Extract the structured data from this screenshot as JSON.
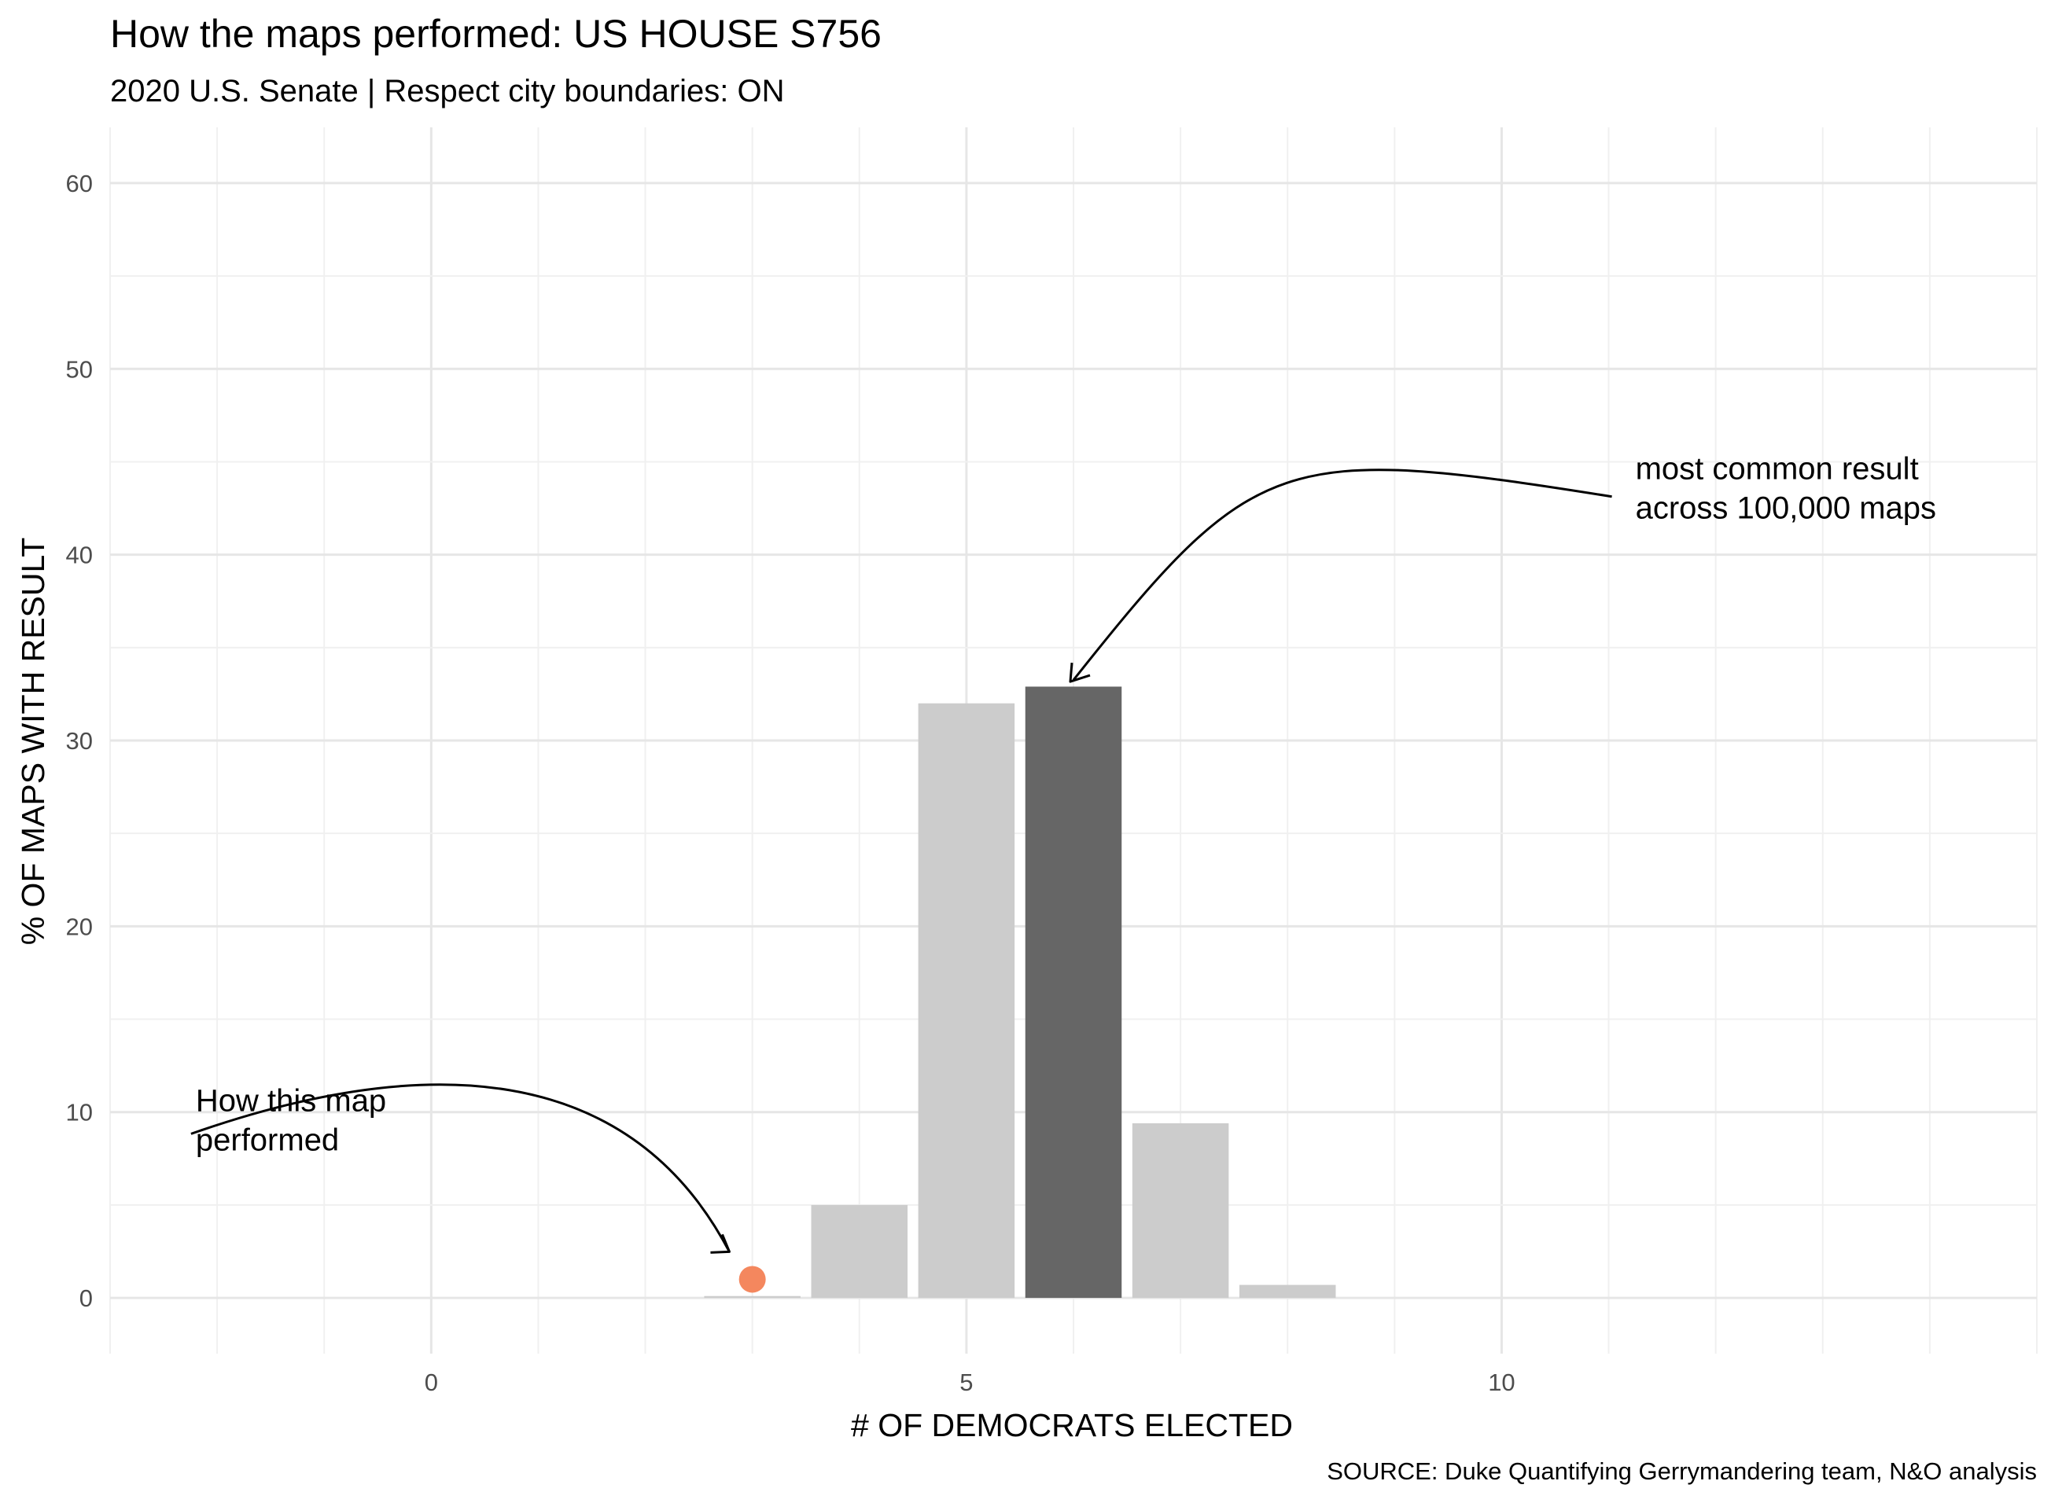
{
  "chart_data": {
    "type": "bar",
    "title": "How the maps performed: US HOUSE S756",
    "subtitle": "2020 U.S. Senate | Respect city boundaries: ON",
    "xlabel": "# OF DEMOCRATS ELECTED",
    "ylabel": "% OF MAPS WITH RESULT",
    "caption": "SOURCE: Duke Quantifying Gerrymandering team, N&O analysis",
    "xlim": [
      -3,
      15
    ],
    "ylim": [
      -3,
      63
    ],
    "x_ticks": [
      0,
      5,
      10
    ],
    "y_ticks": [
      0,
      10,
      20,
      30,
      40,
      50,
      60
    ],
    "grid": "on",
    "bars": {
      "x": [
        3,
        4,
        5,
        6,
        7,
        8
      ],
      "values": [
        0.1,
        5.0,
        32.0,
        32.9,
        9.4,
        0.7
      ],
      "highlight_x": 6,
      "color": "#cccccc",
      "highlight_color": "#666666"
    },
    "point": {
      "x": 3,
      "y": 1.0,
      "color": "#f4875e"
    },
    "annotations": [
      {
        "text_lines": [
          "most common result",
          "across 100,000 maps"
        ],
        "x": 11.25,
        "y": 43,
        "arrow_to": [
          6,
          33
        ]
      },
      {
        "text_lines": [
          "How this map",
          "performed"
        ],
        "x": -2.2,
        "y": 9,
        "arrow_to": [
          2.8,
          2.4
        ]
      }
    ]
  }
}
